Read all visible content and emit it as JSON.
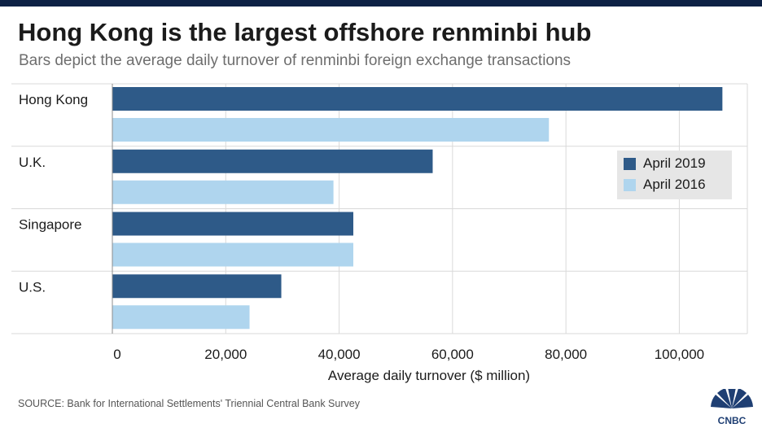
{
  "header": {
    "title": "Hong Kong is the largest offshore renminbi hub",
    "subtitle": "Bars depict the average daily turnover of renminbi foreign exchange transactions"
  },
  "footer": {
    "source": "SOURCE: Bank for International Settlements' Triennial Central Bank Survey",
    "logo_text": "CNBC"
  },
  "colors": {
    "april_2019": "#2e5a88",
    "april_2016": "#afd5ee",
    "gridline": "#d9d9d9",
    "topbar": "#0d2245"
  },
  "chart_data": {
    "type": "bar",
    "orientation": "horizontal",
    "categories": [
      "Hong Kong",
      "U.K.",
      "Singapore",
      "U.S."
    ],
    "series": [
      {
        "name": "April 2019",
        "values": [
          107600,
          56500,
          42500,
          29800
        ]
      },
      {
        "name": "April 2016",
        "values": [
          77000,
          39000,
          42500,
          24200
        ]
      }
    ],
    "title": "Hong Kong is the largest offshore renminbi hub",
    "subtitle": "Bars depict the average daily turnover of renminbi foreign exchange transactions",
    "xlabel": "Average daily turnover ($ million)",
    "ylabel": "",
    "xlim": [
      0,
      112000
    ],
    "xticks": [
      0,
      20000,
      40000,
      60000,
      80000,
      100000
    ],
    "xtick_labels": [
      "0",
      "20,000",
      "40,000",
      "60,000",
      "80,000",
      "100,000"
    ],
    "grid": true,
    "legend": {
      "position": "right",
      "entries": [
        "April 2019",
        "April 2016"
      ]
    }
  }
}
